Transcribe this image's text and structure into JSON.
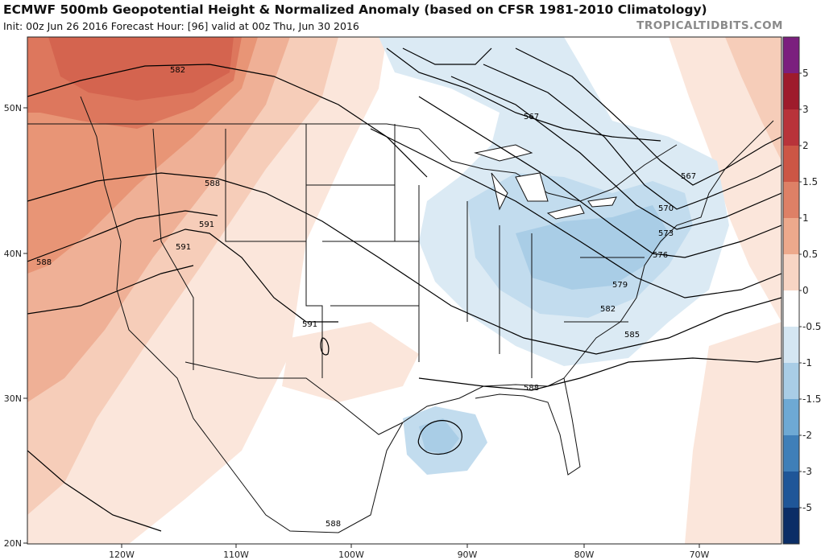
{
  "header": {
    "title": "ECMWF 500mb Geopotential Height & Normalized Anomaly (based on CFSR 1981-2010 Climatology)",
    "subtitle": "Init: 00z Jun 26 2016   Forecast Hour: [96]   valid at 00z Thu, Jun 30 2016",
    "credit": "TROPICALTIDBITS.COM"
  },
  "map": {
    "lon_ticks": [
      "120W",
      "110W",
      "100W",
      "90W",
      "80W",
      "70W"
    ],
    "lat_ticks": [
      "50N",
      "40N",
      "30N",
      "20N"
    ],
    "contour_labels": [
      "582",
      "588",
      "591",
      "591",
      "591",
      "588",
      "567",
      "567",
      "570",
      "573",
      "576",
      "579",
      "582",
      "585",
      "588",
      "588"
    ]
  },
  "colorbar": {
    "labels": [
      "5",
      "3",
      "2",
      "1.5",
      "1",
      "0.5",
      "0",
      "-0.5",
      "-1",
      "-1.5",
      "-2",
      "-3",
      "-5"
    ],
    "colors": [
      "#7b1f7e",
      "#9e1b2c",
      "#b8333a",
      "#cc5645",
      "#de8066",
      "#eda98c",
      "#f8d5c4",
      "#ffffff",
      "#d4e6f2",
      "#a9cde6",
      "#6ea9d4",
      "#3f7fb8",
      "#1f5698",
      "#0b2d66"
    ]
  }
}
